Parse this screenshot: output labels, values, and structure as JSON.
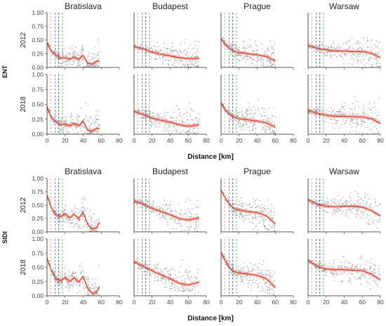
{
  "chart_data": {
    "type": "scatter",
    "panel_titles": [
      "Bratislava",
      "Budapest",
      "Prague",
      "Warsaw"
    ],
    "xlabel": "Distance [km]",
    "xlim": [
      0,
      80
    ],
    "x_ticks": [
      0,
      20,
      40,
      60,
      80
    ],
    "ylim": [
      0,
      1
    ],
    "y_ticks": [
      "0.00",
      "0.25",
      "0.50",
      "0.75",
      "1.00"
    ],
    "vertical_lines_km": [
      {
        "x": 4,
        "color": "#e8a07a"
      },
      {
        "x": 9,
        "color": "#5b7fd6"
      },
      {
        "x": 13,
        "color": "#3c4fa8"
      },
      {
        "x": 17,
        "color": "#55c456"
      }
    ],
    "point_color": "#8c8c8c",
    "fit_color": "#e03a2a",
    "blocks": [
      {
        "label": "ENT",
        "years": [
          "2012",
          "2018"
        ],
        "max_distance_km": [
          58,
          72,
          60,
          80
        ],
        "fits": {
          "Bratislava": {
            "2012": [
              [
                0,
                0.45
              ],
              [
                5,
                0.3
              ],
              [
                10,
                0.22
              ],
              [
                15,
                0.17
              ],
              [
                20,
                0.18
              ],
              [
                25,
                0.15
              ],
              [
                30,
                0.19
              ],
              [
                35,
                0.15
              ],
              [
                40,
                0.22
              ],
              [
                45,
                0.08
              ],
              [
                50,
                0.06
              ],
              [
                55,
                0.12
              ],
              [
                58,
                0.1
              ]
            ],
            "2018": [
              [
                0,
                0.45
              ],
              [
                5,
                0.28
              ],
              [
                10,
                0.2
              ],
              [
                15,
                0.16
              ],
              [
                20,
                0.17
              ],
              [
                25,
                0.14
              ],
              [
                30,
                0.18
              ],
              [
                35,
                0.14
              ],
              [
                40,
                0.22
              ],
              [
                45,
                0.07
              ],
              [
                50,
                0.05
              ],
              [
                55,
                0.1
              ],
              [
                58,
                0.09
              ]
            ]
          },
          "Budapest": {
            "2012": [
              [
                0,
                0.38
              ],
              [
                10,
                0.34
              ],
              [
                20,
                0.28
              ],
              [
                30,
                0.24
              ],
              [
                40,
                0.21
              ],
              [
                50,
                0.18
              ],
              [
                60,
                0.16
              ],
              [
                72,
                0.17
              ]
            ],
            "2018": [
              [
                0,
                0.38
              ],
              [
                10,
                0.33
              ],
              [
                20,
                0.27
              ],
              [
                30,
                0.23
              ],
              [
                40,
                0.2
              ],
              [
                50,
                0.16
              ],
              [
                60,
                0.13
              ],
              [
                72,
                0.16
              ]
            ]
          },
          "Prague": {
            "2012": [
              [
                0,
                0.52
              ],
              [
                5,
                0.42
              ],
              [
                10,
                0.34
              ],
              [
                15,
                0.29
              ],
              [
                20,
                0.27
              ],
              [
                30,
                0.25
              ],
              [
                40,
                0.23
              ],
              [
                50,
                0.2
              ],
              [
                60,
                0.12
              ]
            ],
            "2018": [
              [
                0,
                0.52
              ],
              [
                5,
                0.4
              ],
              [
                10,
                0.33
              ],
              [
                15,
                0.28
              ],
              [
                20,
                0.26
              ],
              [
                30,
                0.24
              ],
              [
                40,
                0.22
              ],
              [
                50,
                0.19
              ],
              [
                60,
                0.12
              ]
            ]
          },
          "Warsaw": {
            "2012": [
              [
                0,
                0.4
              ],
              [
                10,
                0.35
              ],
              [
                20,
                0.32
              ],
              [
                30,
                0.3
              ],
              [
                40,
                0.3
              ],
              [
                50,
                0.29
              ],
              [
                60,
                0.29
              ],
              [
                70,
                0.26
              ],
              [
                80,
                0.18
              ]
            ],
            "2018": [
              [
                0,
                0.4
              ],
              [
                10,
                0.35
              ],
              [
                20,
                0.32
              ],
              [
                30,
                0.3
              ],
              [
                40,
                0.3
              ],
              [
                50,
                0.29
              ],
              [
                60,
                0.29
              ],
              [
                70,
                0.26
              ],
              [
                80,
                0.18
              ]
            ]
          }
        }
      },
      {
        "label": "SIDI",
        "years": [
          "2012",
          "2018"
        ],
        "max_distance_km": [
          58,
          72,
          60,
          80
        ],
        "fits": {
          "Bratislava": {
            "2012": [
              [
                0,
                0.68
              ],
              [
                5,
                0.45
              ],
              [
                10,
                0.32
              ],
              [
                15,
                0.28
              ],
              [
                20,
                0.34
              ],
              [
                25,
                0.26
              ],
              [
                30,
                0.33
              ],
              [
                35,
                0.25
              ],
              [
                40,
                0.36
              ],
              [
                45,
                0.14
              ],
              [
                50,
                0.05
              ],
              [
                55,
                0.08
              ],
              [
                58,
                0.18
              ]
            ],
            "2018": [
              [
                0,
                0.66
              ],
              [
                5,
                0.44
              ],
              [
                10,
                0.3
              ],
              [
                15,
                0.26
              ],
              [
                20,
                0.32
              ],
              [
                25,
                0.25
              ],
              [
                30,
                0.32
              ],
              [
                35,
                0.24
              ],
              [
                40,
                0.34
              ],
              [
                45,
                0.13
              ],
              [
                50,
                0.04
              ],
              [
                55,
                0.07
              ],
              [
                58,
                0.16
              ]
            ]
          },
          "Budapest": {
            "2012": [
              [
                0,
                0.58
              ],
              [
                10,
                0.52
              ],
              [
                20,
                0.44
              ],
              [
                30,
                0.38
              ],
              [
                40,
                0.32
              ],
              [
                50,
                0.25
              ],
              [
                60,
                0.22
              ],
              [
                72,
                0.26
              ]
            ],
            "2018": [
              [
                0,
                0.6
              ],
              [
                10,
                0.52
              ],
              [
                20,
                0.44
              ],
              [
                30,
                0.37
              ],
              [
                40,
                0.3
              ],
              [
                50,
                0.22
              ],
              [
                60,
                0.19
              ],
              [
                72,
                0.24
              ]
            ]
          },
          "Prague": {
            "2012": [
              [
                0,
                0.78
              ],
              [
                5,
                0.62
              ],
              [
                10,
                0.5
              ],
              [
                15,
                0.43
              ],
              [
                20,
                0.41
              ],
              [
                30,
                0.38
              ],
              [
                40,
                0.36
              ],
              [
                50,
                0.3
              ],
              [
                60,
                0.15
              ]
            ],
            "2018": [
              [
                0,
                0.76
              ],
              [
                5,
                0.6
              ],
              [
                10,
                0.48
              ],
              [
                15,
                0.42
              ],
              [
                20,
                0.4
              ],
              [
                30,
                0.38
              ],
              [
                40,
                0.36
              ],
              [
                50,
                0.3
              ],
              [
                60,
                0.15
              ]
            ]
          },
          "Warsaw": {
            "2012": [
              [
                0,
                0.6
              ],
              [
                10,
                0.52
              ],
              [
                20,
                0.48
              ],
              [
                30,
                0.47
              ],
              [
                40,
                0.48
              ],
              [
                50,
                0.48
              ],
              [
                60,
                0.46
              ],
              [
                70,
                0.4
              ],
              [
                80,
                0.3
              ]
            ],
            "2018": [
              [
                0,
                0.62
              ],
              [
                10,
                0.52
              ],
              [
                20,
                0.47
              ],
              [
                30,
                0.46
              ],
              [
                40,
                0.46
              ],
              [
                50,
                0.45
              ],
              [
                60,
                0.44
              ],
              [
                70,
                0.38
              ],
              [
                80,
                0.28
              ]
            ]
          }
        }
      }
    ]
  }
}
